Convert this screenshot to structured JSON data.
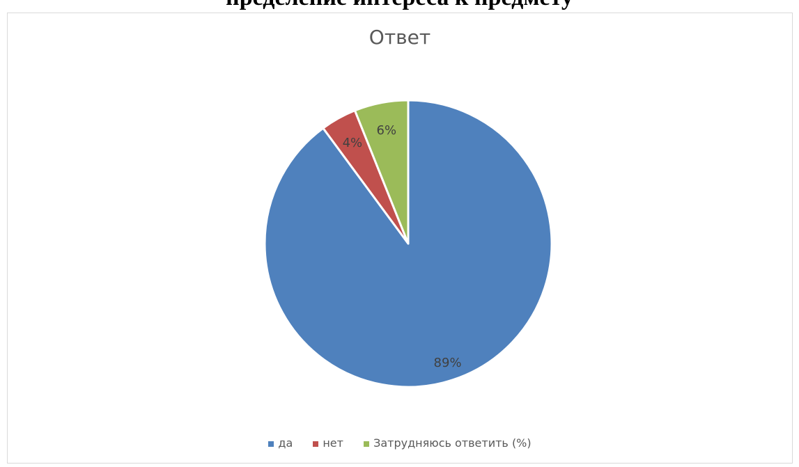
{
  "page": {
    "heading": "пределение интереса к предмету"
  },
  "chart_data": {
    "type": "pie",
    "title": "Ответ",
    "categories": [
      "да",
      "нет",
      "Затрудняюсь ответить (%)"
    ],
    "values": [
      89,
      4,
      6
    ],
    "labels": [
      "89%",
      "4%",
      "6%"
    ],
    "colors": [
      "#4f81bd",
      "#c0504d",
      "#9bbb59"
    ],
    "legend_position": "bottom"
  }
}
